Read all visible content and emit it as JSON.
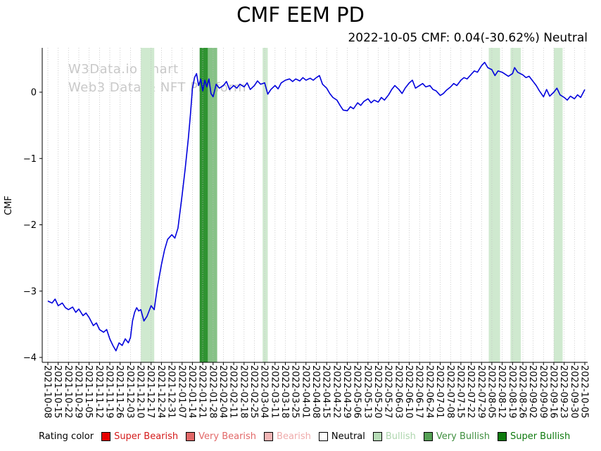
{
  "watermark": {
    "line1": "W3Data.io Chart",
    "line2": "Web3 Data & NFT Platform"
  },
  "legend": {
    "label": "Rating color",
    "items": [
      {
        "label": "Super Bearish",
        "color": "#e60000",
        "text_color": "#d41b1b"
      },
      {
        "label": "Very Bearish",
        "color": "#e26868",
        "text_color": "#e26868"
      },
      {
        "label": "Bearish",
        "color": "#f2b6b6",
        "text_color": "#efabab"
      },
      {
        "label": "Neutral",
        "color": "#ffffff",
        "text_color": "#000000"
      },
      {
        "label": "Bullish",
        "color": "#b7dcb7",
        "text_color": "#aed6ae"
      },
      {
        "label": "Very Bullish",
        "color": "#55a055",
        "text_color": "#3f8f3f"
      },
      {
        "label": "Super Bullish",
        "color": "#0e7a0e",
        "text_color": "#0e7a0e"
      }
    ]
  },
  "chart_data": {
    "type": "line",
    "title": "CMF EEM PD",
    "subtitle": "2022-10-05 CMF: 0.04(-30.62%) Neutral",
    "xlabel": "",
    "ylabel": "CMF",
    "ylim": [
      -4.08,
      0.67
    ],
    "yticks": [
      0,
      -1,
      -2,
      -3,
      -4
    ],
    "grid": "vertical-dotted",
    "legend_position": "bottom",
    "line_color": "#0000dd",
    "x_tick_labels": [
      "2021-10-08",
      "2021-10-15",
      "2021-10-22",
      "2021-10-29",
      "2021-11-05",
      "2021-11-12",
      "2021-11-19",
      "2021-11-26",
      "2021-12-03",
      "2021-12-10",
      "2021-12-17",
      "2021-12-24",
      "2021-12-31",
      "2022-01-07",
      "2022-01-14",
      "2022-01-21",
      "2022-01-28",
      "2022-02-04",
      "2022-02-11",
      "2022-02-18",
      "2022-02-25",
      "2022-03-04",
      "2022-03-11",
      "2022-03-18",
      "2022-03-25",
      "2022-04-01",
      "2022-04-08",
      "2022-04-15",
      "2022-04-22",
      "2022-04-29",
      "2022-05-06",
      "2022-05-13",
      "2022-05-20",
      "2022-05-27",
      "2022-06-03",
      "2022-06-10",
      "2022-06-17",
      "2022-06-24",
      "2022-07-01",
      "2022-07-08",
      "2022-07-15",
      "2022-07-22",
      "2022-07-29",
      "2022-08-05",
      "2022-08-12",
      "2022-08-19",
      "2022-08-26",
      "2022-09-02",
      "2022-09-09",
      "2022-09-16",
      "2022-09-23",
      "2022-09-30",
      "2022-10-05"
    ],
    "series": [
      {
        "name": "CMF",
        "x_weeks": [
          0,
          0.4,
          0.7,
          1,
          1.4,
          1.7,
          2,
          2.4,
          2.7,
          3,
          3.4,
          3.7,
          4,
          4.4,
          4.7,
          5,
          5.4,
          5.7,
          6,
          6.3,
          6.6,
          6.9,
          7.2,
          7.5,
          7.8,
          8,
          8.2,
          8.4,
          8.6,
          8.8,
          9,
          9.3,
          9.6,
          10,
          10.3,
          10.6,
          11,
          11.3,
          11.6,
          12,
          12.3,
          12.6,
          13,
          13.3,
          13.6,
          13.8,
          14,
          14.2,
          14.4,
          14.6,
          14.8,
          15,
          15.2,
          15.4,
          15.6,
          15.8,
          16,
          16.3,
          16.6,
          17,
          17.3,
          17.6,
          18,
          18.3,
          18.6,
          19,
          19.3,
          19.6,
          20,
          20.3,
          20.6,
          21,
          21.3,
          21.6,
          22,
          22.3,
          22.6,
          23,
          23.4,
          23.7,
          24,
          24.4,
          24.7,
          25,
          25.4,
          25.7,
          26,
          26.3,
          26.6,
          27,
          27.3,
          27.6,
          28,
          28.3,
          28.6,
          29,
          29.3,
          29.6,
          30,
          30.3,
          30.6,
          31,
          31.3,
          31.6,
          32,
          32.3,
          32.6,
          33,
          33.3,
          33.6,
          34,
          34.3,
          34.6,
          35,
          35.3,
          35.6,
          36,
          36.3,
          36.6,
          37,
          37.3,
          37.6,
          38,
          38.3,
          38.6,
          39,
          39.3,
          39.6,
          40,
          40.3,
          40.6,
          41,
          41.3,
          41.6,
          42,
          42.3,
          42.6,
          43,
          43.3,
          43.6,
          44,
          44.3,
          44.6,
          45,
          45.2,
          45.5,
          46,
          46.3,
          46.6,
          47,
          47.3,
          47.6,
          48,
          48.3,
          48.6,
          49,
          49.3,
          49.6,
          50,
          50.3,
          50.6,
          51,
          51.3,
          51.6,
          52
        ],
        "values": [
          -3.15,
          -3.18,
          -3.12,
          -3.22,
          -3.18,
          -3.25,
          -3.28,
          -3.24,
          -3.32,
          -3.27,
          -3.37,
          -3.33,
          -3.4,
          -3.52,
          -3.48,
          -3.58,
          -3.62,
          -3.58,
          -3.72,
          -3.82,
          -3.9,
          -3.78,
          -3.82,
          -3.72,
          -3.78,
          -3.7,
          -3.45,
          -3.32,
          -3.25,
          -3.3,
          -3.28,
          -3.45,
          -3.38,
          -3.22,
          -3.28,
          -2.95,
          -2.6,
          -2.38,
          -2.22,
          -2.15,
          -2.2,
          -2.05,
          -1.55,
          -1.15,
          -0.7,
          -0.35,
          0.05,
          0.22,
          0.28,
          0.1,
          0.2,
          0.02,
          0.18,
          0.08,
          0.2,
          -0.02,
          -0.07,
          0.12,
          0.06,
          0.1,
          0.16,
          0.04,
          0.1,
          0.06,
          0.12,
          0.08,
          0.14,
          0.04,
          0.1,
          0.17,
          0.12,
          0.14,
          -0.03,
          0.04,
          0.1,
          0.05,
          0.14,
          0.18,
          0.2,
          0.16,
          0.2,
          0.17,
          0.22,
          0.18,
          0.21,
          0.18,
          0.22,
          0.25,
          0.12,
          0.06,
          -0.02,
          -0.08,
          -0.12,
          -0.2,
          -0.27,
          -0.28,
          -0.22,
          -0.25,
          -0.16,
          -0.2,
          -0.14,
          -0.1,
          -0.16,
          -0.12,
          -0.15,
          -0.08,
          -0.12,
          -0.04,
          0.04,
          0.1,
          0.04,
          -0.02,
          0.06,
          0.14,
          0.18,
          0.06,
          0.1,
          0.13,
          0.08,
          0.1,
          0.04,
          0.02,
          -0.05,
          -0.02,
          0.03,
          0.08,
          0.13,
          0.1,
          0.18,
          0.22,
          0.2,
          0.27,
          0.32,
          0.3,
          0.4,
          0.45,
          0.37,
          0.34,
          0.25,
          0.32,
          0.3,
          0.27,
          0.24,
          0.28,
          0.37,
          0.3,
          0.26,
          0.22,
          0.24,
          0.16,
          0.1,
          0.02,
          -0.07,
          0.04,
          -0.06,
          0,
          0.06,
          -0.04,
          -0.08,
          -0.12,
          -0.06,
          -0.1,
          -0.04,
          -0.08,
          0.04
        ]
      }
    ],
    "rating_bands": [
      {
        "start_week": 9.0,
        "end_week": 10.3,
        "level": "Bullish",
        "color": "#cfe9cf"
      },
      {
        "start_week": 14.7,
        "end_week": 15.5,
        "level": "Super Bullish",
        "color": "#2f9331"
      },
      {
        "start_week": 15.5,
        "end_week": 16.4,
        "level": "Very Bullish",
        "color": "#86c286"
      },
      {
        "start_week": 20.8,
        "end_week": 21.3,
        "level": "Bullish",
        "color": "#cfe9cf"
      },
      {
        "start_week": 42.7,
        "end_week": 43.8,
        "level": "Bullish",
        "color": "#cfe9cf"
      },
      {
        "start_week": 44.8,
        "end_week": 45.8,
        "level": "Bullish",
        "color": "#cfe9cf"
      },
      {
        "start_week": 49.0,
        "end_week": 49.85,
        "level": "Bullish",
        "color": "#cfe9cf"
      }
    ]
  }
}
